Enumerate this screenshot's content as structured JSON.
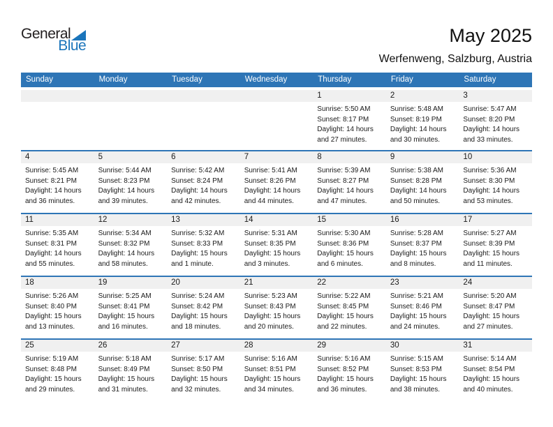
{
  "logo": {
    "word_general": "General",
    "word_blue": "Blue"
  },
  "header": {
    "title": "May 2025",
    "subtitle": "Werfenweng, Salzburg, Austria"
  },
  "colors": {
    "accent": "#2E75B6",
    "strip_bg": "#F0F0F0",
    "logo_blue": "#1B75BB",
    "text": "#1A1A1A"
  },
  "weekdays": [
    "Sunday",
    "Monday",
    "Tuesday",
    "Wednesday",
    "Thursday",
    "Friday",
    "Saturday"
  ],
  "weeks": [
    [
      null,
      null,
      null,
      null,
      {
        "day": "1",
        "sunrise": "Sunrise: 5:50 AM",
        "sunset": "Sunset: 8:17 PM",
        "daylight": "Daylight: 14 hours and 27 minutes."
      },
      {
        "day": "2",
        "sunrise": "Sunrise: 5:48 AM",
        "sunset": "Sunset: 8:19 PM",
        "daylight": "Daylight: 14 hours and 30 minutes."
      },
      {
        "day": "3",
        "sunrise": "Sunrise: 5:47 AM",
        "sunset": "Sunset: 8:20 PM",
        "daylight": "Daylight: 14 hours and 33 minutes."
      }
    ],
    [
      {
        "day": "4",
        "sunrise": "Sunrise: 5:45 AM",
        "sunset": "Sunset: 8:21 PM",
        "daylight": "Daylight: 14 hours and 36 minutes."
      },
      {
        "day": "5",
        "sunrise": "Sunrise: 5:44 AM",
        "sunset": "Sunset: 8:23 PM",
        "daylight": "Daylight: 14 hours and 39 minutes."
      },
      {
        "day": "6",
        "sunrise": "Sunrise: 5:42 AM",
        "sunset": "Sunset: 8:24 PM",
        "daylight": "Daylight: 14 hours and 42 minutes."
      },
      {
        "day": "7",
        "sunrise": "Sunrise: 5:41 AM",
        "sunset": "Sunset: 8:26 PM",
        "daylight": "Daylight: 14 hours and 44 minutes."
      },
      {
        "day": "8",
        "sunrise": "Sunrise: 5:39 AM",
        "sunset": "Sunset: 8:27 PM",
        "daylight": "Daylight: 14 hours and 47 minutes."
      },
      {
        "day": "9",
        "sunrise": "Sunrise: 5:38 AM",
        "sunset": "Sunset: 8:28 PM",
        "daylight": "Daylight: 14 hours and 50 minutes."
      },
      {
        "day": "10",
        "sunrise": "Sunrise: 5:36 AM",
        "sunset": "Sunset: 8:30 PM",
        "daylight": "Daylight: 14 hours and 53 minutes."
      }
    ],
    [
      {
        "day": "11",
        "sunrise": "Sunrise: 5:35 AM",
        "sunset": "Sunset: 8:31 PM",
        "daylight": "Daylight: 14 hours and 55 minutes."
      },
      {
        "day": "12",
        "sunrise": "Sunrise: 5:34 AM",
        "sunset": "Sunset: 8:32 PM",
        "daylight": "Daylight: 14 hours and 58 minutes."
      },
      {
        "day": "13",
        "sunrise": "Sunrise: 5:32 AM",
        "sunset": "Sunset: 8:33 PM",
        "daylight": "Daylight: 15 hours and 1 minute."
      },
      {
        "day": "14",
        "sunrise": "Sunrise: 5:31 AM",
        "sunset": "Sunset: 8:35 PM",
        "daylight": "Daylight: 15 hours and 3 minutes."
      },
      {
        "day": "15",
        "sunrise": "Sunrise: 5:30 AM",
        "sunset": "Sunset: 8:36 PM",
        "daylight": "Daylight: 15 hours and 6 minutes."
      },
      {
        "day": "16",
        "sunrise": "Sunrise: 5:28 AM",
        "sunset": "Sunset: 8:37 PM",
        "daylight": "Daylight: 15 hours and 8 minutes."
      },
      {
        "day": "17",
        "sunrise": "Sunrise: 5:27 AM",
        "sunset": "Sunset: 8:39 PM",
        "daylight": "Daylight: 15 hours and 11 minutes."
      }
    ],
    [
      {
        "day": "18",
        "sunrise": "Sunrise: 5:26 AM",
        "sunset": "Sunset: 8:40 PM",
        "daylight": "Daylight: 15 hours and 13 minutes."
      },
      {
        "day": "19",
        "sunrise": "Sunrise: 5:25 AM",
        "sunset": "Sunset: 8:41 PM",
        "daylight": "Daylight: 15 hours and 16 minutes."
      },
      {
        "day": "20",
        "sunrise": "Sunrise: 5:24 AM",
        "sunset": "Sunset: 8:42 PM",
        "daylight": "Daylight: 15 hours and 18 minutes."
      },
      {
        "day": "21",
        "sunrise": "Sunrise: 5:23 AM",
        "sunset": "Sunset: 8:43 PM",
        "daylight": "Daylight: 15 hours and 20 minutes."
      },
      {
        "day": "22",
        "sunrise": "Sunrise: 5:22 AM",
        "sunset": "Sunset: 8:45 PM",
        "daylight": "Daylight: 15 hours and 22 minutes."
      },
      {
        "day": "23",
        "sunrise": "Sunrise: 5:21 AM",
        "sunset": "Sunset: 8:46 PM",
        "daylight": "Daylight: 15 hours and 24 minutes."
      },
      {
        "day": "24",
        "sunrise": "Sunrise: 5:20 AM",
        "sunset": "Sunset: 8:47 PM",
        "daylight": "Daylight: 15 hours and 27 minutes."
      }
    ],
    [
      {
        "day": "25",
        "sunrise": "Sunrise: 5:19 AM",
        "sunset": "Sunset: 8:48 PM",
        "daylight": "Daylight: 15 hours and 29 minutes."
      },
      {
        "day": "26",
        "sunrise": "Sunrise: 5:18 AM",
        "sunset": "Sunset: 8:49 PM",
        "daylight": "Daylight: 15 hours and 31 minutes."
      },
      {
        "day": "27",
        "sunrise": "Sunrise: 5:17 AM",
        "sunset": "Sunset: 8:50 PM",
        "daylight": "Daylight: 15 hours and 32 minutes."
      },
      {
        "day": "28",
        "sunrise": "Sunrise: 5:16 AM",
        "sunset": "Sunset: 8:51 PM",
        "daylight": "Daylight: 15 hours and 34 minutes."
      },
      {
        "day": "29",
        "sunrise": "Sunrise: 5:16 AM",
        "sunset": "Sunset: 8:52 PM",
        "daylight": "Daylight: 15 hours and 36 minutes."
      },
      {
        "day": "30",
        "sunrise": "Sunrise: 5:15 AM",
        "sunset": "Sunset: 8:53 PM",
        "daylight": "Daylight: 15 hours and 38 minutes."
      },
      {
        "day": "31",
        "sunrise": "Sunrise: 5:14 AM",
        "sunset": "Sunset: 8:54 PM",
        "daylight": "Daylight: 15 hours and 40 minutes."
      }
    ]
  ]
}
